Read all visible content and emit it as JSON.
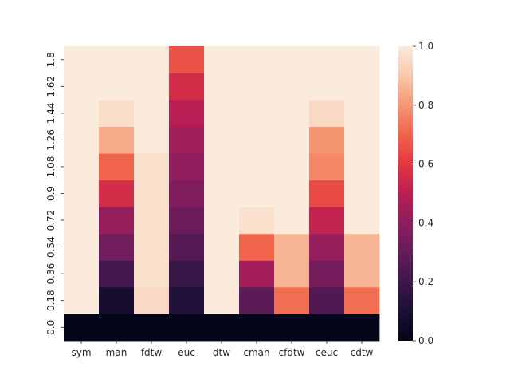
{
  "chart_data": {
    "type": "heatmap",
    "title": "",
    "xlabel": "",
    "ylabel": "",
    "columns": [
      "sym",
      "man",
      "fdtw",
      "euc",
      "dtw",
      "cman",
      "cfdtw",
      "ceuc",
      "cdtw"
    ],
    "rows": [
      "0.0",
      "0.18",
      "0.36",
      "0.54",
      "0.72",
      "0.9",
      "1.08",
      "1.26",
      "1.44",
      "1.62",
      "1.8"
    ],
    "row_order": "bottom-to-top",
    "colorscale": "rocket",
    "vmin": 0.0,
    "vmax": 1.0,
    "colorbar_ticks": [
      "0.0",
      "0.2",
      "0.4",
      "0.6",
      "0.8",
      "1.0"
    ],
    "values": [
      [
        0.0,
        0.0,
        0.0,
        0.0,
        0.0,
        0.0,
        0.0,
        0.0,
        0.0
      ],
      [
        1.0,
        0.08,
        0.95,
        0.12,
        1.0,
        0.28,
        0.72,
        0.25,
        0.72
      ],
      [
        1.0,
        0.22,
        0.97,
        0.18,
        1.0,
        0.45,
        0.86,
        0.34,
        0.86
      ],
      [
        1.0,
        0.33,
        0.97,
        0.26,
        1.0,
        0.7,
        0.86,
        0.42,
        0.86
      ],
      [
        1.0,
        0.42,
        0.97,
        0.32,
        1.0,
        0.97,
        1.0,
        0.52,
        1.0
      ],
      [
        1.0,
        0.56,
        0.97,
        0.37,
        1.0,
        1.0,
        1.0,
        0.64,
        1.0
      ],
      [
        1.0,
        0.7,
        0.97,
        0.41,
        1.0,
        1.0,
        1.0,
        0.77,
        1.0
      ],
      [
        1.0,
        0.84,
        0.99,
        0.44,
        1.0,
        1.0,
        1.0,
        0.8,
        1.0
      ],
      [
        1.0,
        0.96,
        1.0,
        0.49,
        1.0,
        1.0,
        1.0,
        0.95,
        1.0
      ],
      [
        1.0,
        1.0,
        1.0,
        0.56,
        1.0,
        1.0,
        1.0,
        1.0,
        1.0
      ],
      [
        1.0,
        1.0,
        1.0,
        0.66,
        1.0,
        1.0,
        1.0,
        1.0,
        1.0
      ]
    ]
  }
}
